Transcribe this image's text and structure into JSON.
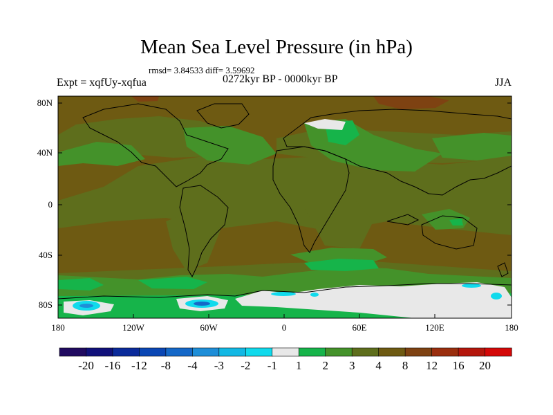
{
  "title": "Mean Sea Level Pressure (in hPa)",
  "stats": "rmsd= 3.84533 diff= 3.59692",
  "experiment": "Expt = xqfUy-xqfua",
  "period": "0272kyr BP - 0000kyr BP",
  "season": "JJA",
  "lat_labels": [
    "80N",
    "40N",
    "0",
    "40S",
    "80S"
  ],
  "lon_labels": [
    "180",
    "120W",
    "60W",
    "0",
    "60E",
    "120E",
    "180"
  ],
  "colorbar": {
    "labels": [
      "-20",
      "-16",
      "-12",
      "-8",
      "-4",
      "-3",
      "-2",
      "-1",
      "1",
      "2",
      "3",
      "4",
      "8",
      "12",
      "16",
      "20"
    ],
    "colors": [
      "#200a60",
      "#10107a",
      "#0a2a9a",
      "#0a46b4",
      "#1468c8",
      "#1e8ed8",
      "#12b8e4",
      "#10daec",
      "#e8e8e8",
      "#16b44a",
      "#44922a",
      "#5e6e1c",
      "#6e5a12",
      "#7e4212",
      "#9a2e0e",
      "#b4160c",
      "#d40808"
    ]
  },
  "colors": {
    "base": "#6e5a12",
    "level3": "#5e6e1c",
    "level2": "#44922a",
    "level1": "#16b44a",
    "neutral": "#e8e8e8",
    "neg1": "#10daec",
    "neg3": "#1e8ed8",
    "neg4": "#1468c8",
    "pos12": "#7e4212"
  }
}
